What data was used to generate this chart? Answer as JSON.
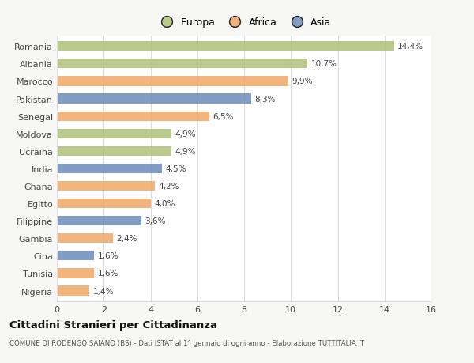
{
  "countries": [
    "Romania",
    "Albania",
    "Marocco",
    "Pakistan",
    "Senegal",
    "Moldova",
    "Ucraina",
    "India",
    "Ghana",
    "Egitto",
    "Filippine",
    "Gambia",
    "Cina",
    "Tunisia",
    "Nigeria"
  ],
  "values": [
    14.4,
    10.7,
    9.9,
    8.3,
    6.5,
    4.9,
    4.9,
    4.5,
    4.2,
    4.0,
    3.6,
    2.4,
    1.6,
    1.6,
    1.4
  ],
  "labels": [
    "14,4%",
    "10,7%",
    "9,9%",
    "8,3%",
    "6,5%",
    "4,9%",
    "4,9%",
    "4,5%",
    "4,2%",
    "4,0%",
    "3,6%",
    "2,4%",
    "1,6%",
    "1,6%",
    "1,4%"
  ],
  "colors": [
    "#adc178",
    "#adc178",
    "#f0a868",
    "#6b8cba",
    "#f0a868",
    "#adc178",
    "#adc178",
    "#6b8cba",
    "#f0a868",
    "#f0a868",
    "#6b8cba",
    "#f0a868",
    "#6b8cba",
    "#f0a868",
    "#f0a868"
  ],
  "legend_labels": [
    "Europa",
    "Africa",
    "Asia"
  ],
  "legend_colors": [
    "#adc178",
    "#f0a868",
    "#6b8cba"
  ],
  "title": "Cittadini Stranieri per Cittadinanza",
  "subtitle": "COMUNE DI RODENGO SAIANO (BS) - Dati ISTAT al 1° gennaio di ogni anno - Elaborazione TUTTITALIA.IT",
  "xlim": [
    0,
    16
  ],
  "xticks": [
    0,
    2,
    4,
    6,
    8,
    10,
    12,
    14,
    16
  ],
  "background_color": "#f7f7f5",
  "plot_bg_color": "#ffffff",
  "grid_color": "#dddddd",
  "bar_height": 0.55,
  "bar_alpha": 0.85
}
